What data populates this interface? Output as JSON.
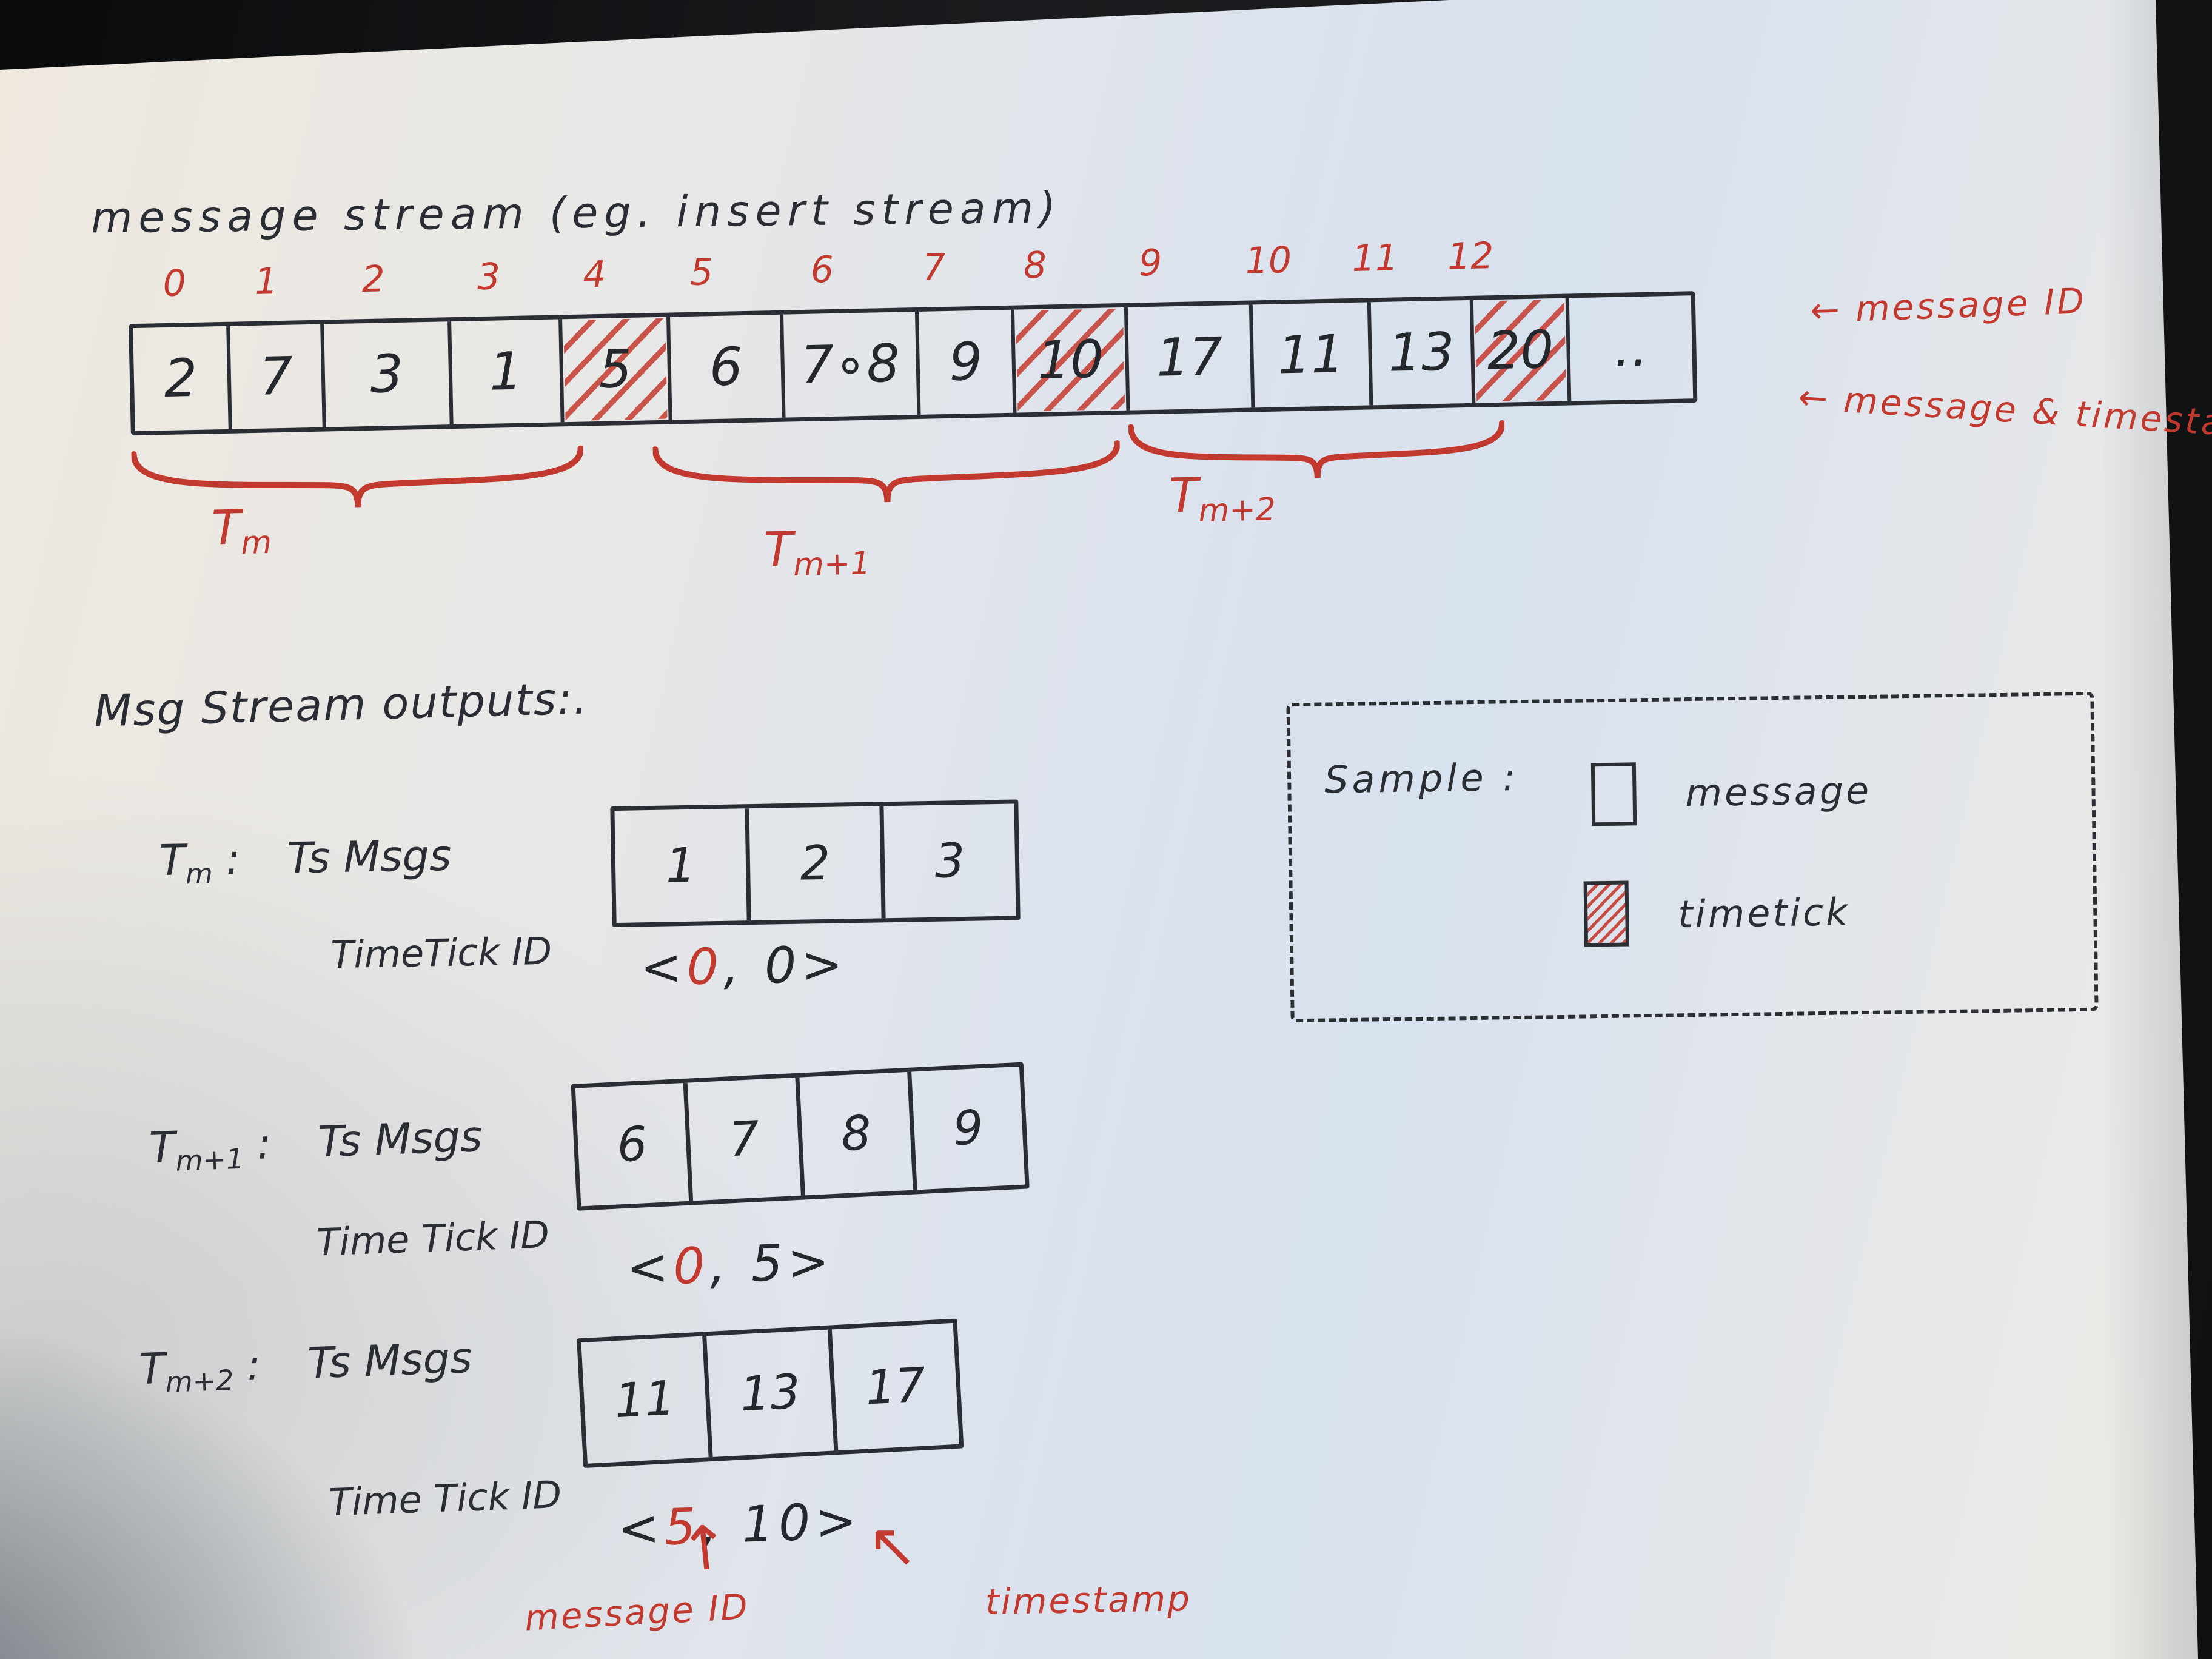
{
  "title": "message stream (eg. insert stream)",
  "colors": {
    "ink": "#2a2d33",
    "red": "#c23a2f",
    "paper": "#dde3ed"
  },
  "stream": {
    "indices": [
      "0",
      "1",
      "2",
      "3",
      "4",
      "5",
      "6",
      "7",
      "8",
      "9",
      "10",
      "11",
      "12"
    ],
    "cells": [
      {
        "value": "2",
        "type": "message"
      },
      {
        "value": "7",
        "type": "message"
      },
      {
        "value": "3",
        "type": "message"
      },
      {
        "value": "1",
        "type": "message"
      },
      {
        "value": "5",
        "type": "timetick"
      },
      {
        "value": "6",
        "type": "message"
      },
      {
        "value": "7∘8",
        "type": "message"
      },
      {
        "value": "9",
        "type": "message"
      },
      {
        "value": "10",
        "type": "timetick"
      },
      {
        "value": "17",
        "type": "message"
      },
      {
        "value": "11",
        "type": "message"
      },
      {
        "value": "13",
        "type": "message"
      },
      {
        "value": "20",
        "type": "timetick"
      },
      {
        "value": "‥",
        "type": "message"
      }
    ],
    "arrow_label_id": "← message ID",
    "arrow_label_ts": "← message & timestamp",
    "braces": [
      {
        "base": "T",
        "sub": "m"
      },
      {
        "base": "T",
        "sub": "m+1"
      },
      {
        "base": "T",
        "sub": "m+2"
      }
    ]
  },
  "outputs": {
    "heading": "Msg Stream outputs:.",
    "rows": [
      {
        "t_base": "T",
        "t_sub": "m",
        "colon": ":",
        "msgs_label": "Ts Msgs",
        "cells": [
          "1",
          "2",
          "3"
        ],
        "tick_label": "TimeTick ID",
        "tuple": {
          "open": "<",
          "message_id": "0",
          "comma": ",",
          "timestamp": "0",
          "close": ">"
        }
      },
      {
        "t_base": "T",
        "t_sub": "m+1",
        "colon": ":",
        "msgs_label": "Ts Msgs",
        "cells": [
          "6",
          "7",
          "8",
          "9"
        ],
        "tick_label": "Time Tick ID",
        "tuple": {
          "open": "<",
          "message_id": "0",
          "comma": ",",
          "timestamp": "5",
          "close": ">"
        }
      },
      {
        "t_base": "T",
        "t_sub": "m+2",
        "colon": ":",
        "msgs_label": "Ts Msgs",
        "cells": [
          "11",
          "13",
          "17"
        ],
        "tick_label": "Time Tick ID",
        "tuple": {
          "open": "<",
          "message_id": "5",
          "comma": ",",
          "timestamp": "10",
          "close": ">"
        }
      }
    ],
    "annotations": {
      "up_arrow": "↑",
      "upleft_arrow": "↖",
      "id_label": "message ID",
      "ts_label": "timestamp"
    }
  },
  "legend": {
    "title": "Sample :",
    "items": [
      {
        "swatch": "message-box",
        "label": "message"
      },
      {
        "swatch": "timetick-box",
        "label": "timetick"
      }
    ]
  }
}
